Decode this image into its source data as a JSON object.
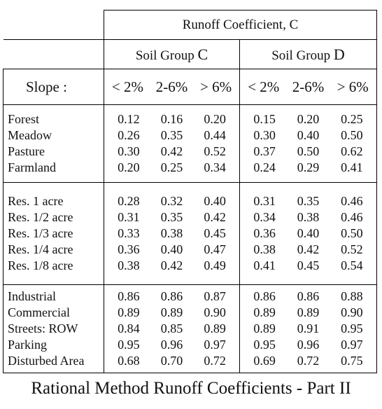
{
  "table": {
    "header_title": "Runoff Coefficient, C",
    "groups": [
      {
        "prefix": "Soil Group ",
        "letter": "C"
      },
      {
        "prefix": "Soil Group ",
        "letter": "D"
      }
    ],
    "slope_label": "Slope :",
    "slopes": [
      "< 2%",
      "2-6%",
      "> 6%"
    ],
    "sections": [
      {
        "rows": [
          {
            "name": "Forest",
            "values": [
              "0.12",
              "0.16",
              "0.20",
              "0.15",
              "0.20",
              "0.25"
            ]
          },
          {
            "name": "Meadow",
            "values": [
              "0.26",
              "0.35",
              "0.44",
              "0.30",
              "0.40",
              "0.50"
            ]
          },
          {
            "name": "Pasture",
            "values": [
              "0.30",
              "0.42",
              "0.52",
              "0.37",
              "0.50",
              "0.62"
            ]
          },
          {
            "name": "Farmland",
            "values": [
              "0.20",
              "0.25",
              "0.34",
              "0.24",
              "0.29",
              "0.41"
            ]
          }
        ]
      },
      {
        "rows": [
          {
            "name": "Res. 1 acre",
            "values": [
              "0.28",
              "0.32",
              "0.40",
              "0.31",
              "0.35",
              "0.46"
            ]
          },
          {
            "name": "Res. 1/2 acre",
            "values": [
              "0.31",
              "0.35",
              "0.42",
              "0.34",
              "0.38",
              "0.46"
            ]
          },
          {
            "name": "Res. 1/3 acre",
            "values": [
              "0.33",
              "0.38",
              "0.45",
              "0.36",
              "0.40",
              "0.50"
            ]
          },
          {
            "name": "Res. 1/4 acre",
            "values": [
              "0.36",
              "0.40",
              "0.47",
              "0.38",
              "0.42",
              "0.52"
            ]
          },
          {
            "name": "Res. 1/8 acre",
            "values": [
              "0.38",
              "0.42",
              "0.49",
              "0.41",
              "0.45",
              "0.54"
            ]
          }
        ]
      },
      {
        "rows": [
          {
            "name": "Industrial",
            "values": [
              "0.86",
              "0.86",
              "0.87",
              "0.86",
              "0.86",
              "0.88"
            ]
          },
          {
            "name": "Commercial",
            "values": [
              "0.89",
              "0.89",
              "0.90",
              "0.89",
              "0.89",
              "0.90"
            ]
          },
          {
            "name": "Streets: ROW",
            "values": [
              "0.84",
              "0.85",
              "0.89",
              "0.89",
              "0.91",
              "0.95"
            ]
          },
          {
            "name": "Parking",
            "values": [
              "0.95",
              "0.96",
              "0.97",
              "0.95",
              "0.96",
              "0.97"
            ]
          },
          {
            "name": "Disturbed Area",
            "values": [
              "0.68",
              "0.70",
              "0.72",
              "0.69",
              "0.72",
              "0.75"
            ]
          }
        ]
      }
    ]
  },
  "caption": "Rational Method Runoff Coefficients - Part II"
}
